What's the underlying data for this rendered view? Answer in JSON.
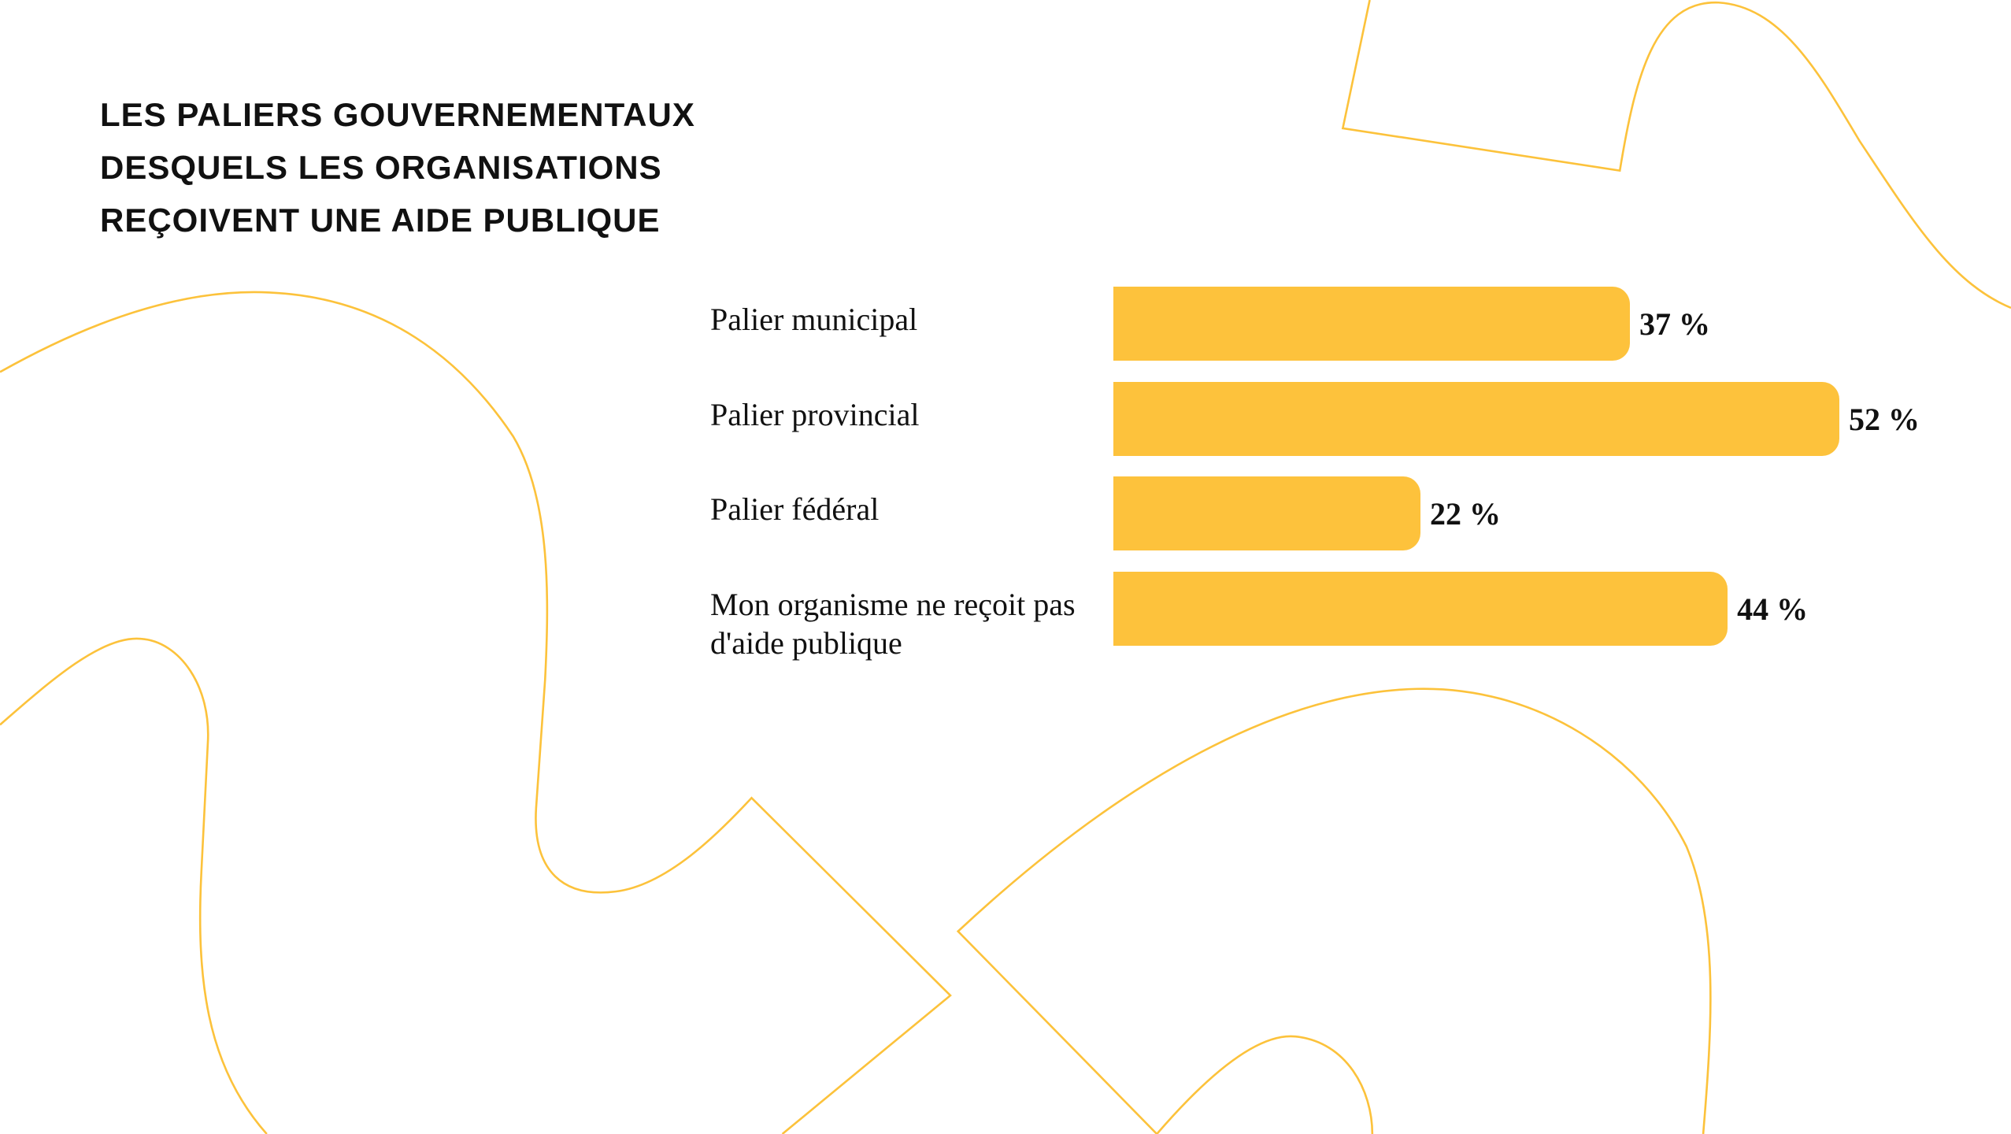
{
  "chart_data": {
    "type": "bar",
    "orientation": "horizontal",
    "title": "LES PALIERS GOUVERNEMENTAUX DESQUELS LES ORGANISATIONS REÇOIVENT UNE AIDE PUBLIQUE",
    "categories": [
      "Palier municipal",
      "Palier provincial",
      "Palier fédéral",
      "Mon organisme ne reçoit pas d'aide publique"
    ],
    "values": [
      37,
      52,
      22,
      44
    ],
    "value_labels": [
      "37 %",
      "52 %",
      "22 %",
      "44 %"
    ],
    "color": "#fdc23c"
  }
}
